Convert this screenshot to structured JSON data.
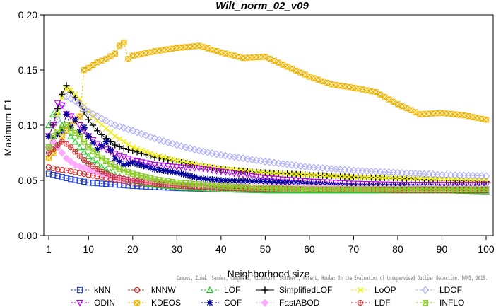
{
  "chart_data": {
    "type": "line",
    "title": "Wilt_norm_02_v09",
    "xlabel": "Neighborhood size",
    "ylabel": "Maximum F1",
    "xlim": [
      1,
      100
    ],
    "ylim": [
      0.0,
      0.2
    ],
    "xticks": [
      1,
      10,
      20,
      30,
      40,
      50,
      60,
      70,
      80,
      90,
      100
    ],
    "yticks": [
      0.0,
      0.05,
      0.1,
      0.15,
      0.2
    ],
    "ytick_labels": [
      "0.00",
      "0.05",
      "0.10",
      "0.15",
      "0.20"
    ],
    "grid": false,
    "legend_position": "bottom",
    "credit": "Campos, Zimek, Sander, Campello, Micenková, Schubert, Assent, Houle: On the Evaluation of Unsupervised Outlier Detection. DAMI, 2015.",
    "series": [
      {
        "name": "kNN",
        "color": "#1f3fdc",
        "marker": "square",
        "linestyle": "dashed",
        "points": [
          [
            1,
            0.056
          ],
          [
            3,
            0.054
          ],
          [
            5,
            0.052
          ],
          [
            10,
            0.048
          ],
          [
            20,
            0.045
          ],
          [
            30,
            0.043
          ],
          [
            40,
            0.042
          ],
          [
            50,
            0.041
          ],
          [
            60,
            0.041
          ],
          [
            70,
            0.041
          ],
          [
            80,
            0.041
          ],
          [
            90,
            0.041
          ],
          [
            100,
            0.041
          ]
        ]
      },
      {
        "name": "kNNW",
        "color": "#e02020",
        "marker": "circle",
        "linestyle": "dashed",
        "points": [
          [
            1,
            0.062
          ],
          [
            3,
            0.06
          ],
          [
            5,
            0.059
          ],
          [
            10,
            0.055
          ],
          [
            20,
            0.048
          ],
          [
            30,
            0.045
          ],
          [
            40,
            0.043
          ],
          [
            50,
            0.042
          ],
          [
            60,
            0.042
          ],
          [
            70,
            0.042
          ],
          [
            80,
            0.042
          ],
          [
            90,
            0.041
          ],
          [
            100,
            0.041
          ]
        ]
      },
      {
        "name": "LOF",
        "color": "#22cc22",
        "marker": "triangle-up",
        "linestyle": "dashed",
        "points": [
          [
            1,
            0.1
          ],
          [
            2,
            0.11
          ],
          [
            3,
            0.112
          ],
          [
            4,
            0.1
          ],
          [
            5,
            0.095
          ],
          [
            6,
            0.09
          ],
          [
            8,
            0.08
          ],
          [
            10,
            0.072
          ],
          [
            13,
            0.062
          ],
          [
            16,
            0.055
          ],
          [
            20,
            0.05
          ],
          [
            25,
            0.046
          ],
          [
            30,
            0.044
          ],
          [
            40,
            0.042
          ],
          [
            50,
            0.041
          ],
          [
            60,
            0.041
          ],
          [
            70,
            0.041
          ],
          [
            80,
            0.041
          ],
          [
            90,
            0.041
          ],
          [
            100,
            0.04
          ]
        ]
      },
      {
        "name": "SimplifiedLOF",
        "color": "#000000",
        "marker": "plus",
        "linestyle": "solid",
        "points": [
          [
            1,
            0.09
          ],
          [
            2,
            0.1
          ],
          [
            3,
            0.115
          ],
          [
            4,
            0.128
          ],
          [
            5,
            0.136
          ],
          [
            6,
            0.13
          ],
          [
            7,
            0.125
          ],
          [
            8,
            0.12
          ],
          [
            9,
            0.112
          ],
          [
            10,
            0.105
          ],
          [
            12,
            0.095
          ],
          [
            14,
            0.088
          ],
          [
            16,
            0.082
          ],
          [
            18,
            0.079
          ],
          [
            20,
            0.077
          ],
          [
            25,
            0.071
          ],
          [
            30,
            0.067
          ],
          [
            35,
            0.063
          ],
          [
            40,
            0.06
          ],
          [
            50,
            0.057
          ],
          [
            60,
            0.055
          ],
          [
            70,
            0.053
          ],
          [
            80,
            0.052
          ],
          [
            90,
            0.05
          ],
          [
            100,
            0.049
          ]
        ]
      },
      {
        "name": "LoOP",
        "color": "#eeee00",
        "marker": "x",
        "linestyle": "dashed",
        "points": [
          [
            1,
            0.08
          ],
          [
            2,
            0.09
          ],
          [
            3,
            0.11
          ],
          [
            4,
            0.125
          ],
          [
            5,
            0.133
          ],
          [
            6,
            0.132
          ],
          [
            7,
            0.128
          ],
          [
            8,
            0.124
          ],
          [
            10,
            0.112
          ],
          [
            12,
            0.104
          ],
          [
            14,
            0.097
          ],
          [
            16,
            0.09
          ],
          [
            18,
            0.085
          ],
          [
            20,
            0.08
          ],
          [
            25,
            0.073
          ],
          [
            30,
            0.068
          ],
          [
            35,
            0.064
          ],
          [
            40,
            0.061
          ],
          [
            50,
            0.057
          ],
          [
            60,
            0.055
          ],
          [
            70,
            0.053
          ],
          [
            80,
            0.052
          ],
          [
            90,
            0.051
          ],
          [
            100,
            0.05
          ]
        ]
      },
      {
        "name": "LDOF",
        "color": "#aaaaff",
        "marker": "diamond",
        "linestyle": "dashed",
        "points": [
          [
            1,
            0.08
          ],
          [
            2,
            0.09
          ],
          [
            3,
            0.105
          ],
          [
            4,
            0.118
          ],
          [
            5,
            0.126
          ],
          [
            6,
            0.124
          ],
          [
            7,
            0.122
          ],
          [
            8,
            0.119
          ],
          [
            10,
            0.112
          ],
          [
            13,
            0.106
          ],
          [
            16,
            0.1
          ],
          [
            20,
            0.095
          ],
          [
            25,
            0.088
          ],
          [
            30,
            0.082
          ],
          [
            35,
            0.077
          ],
          [
            40,
            0.073
          ],
          [
            50,
            0.067
          ],
          [
            60,
            0.062
          ],
          [
            70,
            0.059
          ],
          [
            80,
            0.057
          ],
          [
            90,
            0.055
          ],
          [
            100,
            0.054
          ]
        ]
      },
      {
        "name": "ODIN",
        "color": "#b000e0",
        "marker": "triangle-down",
        "linestyle": "dashed",
        "points": [
          [
            1,
            0.09
          ],
          [
            2,
            0.1
          ],
          [
            3,
            0.12
          ],
          [
            4,
            0.118
          ],
          [
            5,
            0.11
          ],
          [
            6,
            0.108
          ],
          [
            7,
            0.105
          ],
          [
            8,
            0.1
          ],
          [
            10,
            0.09
          ],
          [
            12,
            0.083
          ],
          [
            14,
            0.078
          ],
          [
            16,
            0.074
          ],
          [
            20,
            0.068
          ],
          [
            25,
            0.064
          ],
          [
            30,
            0.062
          ],
          [
            35,
            0.061
          ],
          [
            40,
            0.058
          ],
          [
            50,
            0.052
          ],
          [
            60,
            0.049
          ],
          [
            70,
            0.047
          ],
          [
            80,
            0.046
          ],
          [
            90,
            0.046
          ],
          [
            100,
            0.046
          ]
        ]
      },
      {
        "name": "KDEOS",
        "color": "#f0b400",
        "marker": "square-x",
        "linestyle": "dashed",
        "points": [
          [
            1,
            0.07
          ],
          [
            2,
            0.075
          ],
          [
            3,
            0.08
          ],
          [
            4,
            0.09
          ],
          [
            5,
            0.095
          ],
          [
            6,
            0.1
          ],
          [
            7,
            0.104
          ],
          [
            8,
            0.108
          ],
          [
            9,
            0.15
          ],
          [
            10,
            0.152
          ],
          [
            12,
            0.157
          ],
          [
            14,
            0.16
          ],
          [
            16,
            0.165
          ],
          [
            17,
            0.172
          ],
          [
            18,
            0.175
          ],
          [
            19,
            0.16
          ],
          [
            20,
            0.163
          ],
          [
            25,
            0.167
          ],
          [
            30,
            0.17
          ],
          [
            35,
            0.172
          ],
          [
            40,
            0.166
          ],
          [
            45,
            0.161
          ],
          [
            50,
            0.162
          ],
          [
            55,
            0.153
          ],
          [
            60,
            0.144
          ],
          [
            65,
            0.137
          ],
          [
            70,
            0.134
          ],
          [
            75,
            0.13
          ],
          [
            80,
            0.119
          ],
          [
            85,
            0.11
          ],
          [
            90,
            0.111
          ],
          [
            95,
            0.109
          ],
          [
            100,
            0.105
          ]
        ]
      },
      {
        "name": "COF",
        "color": "#000099",
        "marker": "star",
        "linestyle": "dashed",
        "points": [
          [
            1,
            0.09
          ],
          [
            2,
            0.088
          ],
          [
            3,
            0.092
          ],
          [
            4,
            0.095
          ],
          [
            5,
            0.11
          ],
          [
            6,
            0.098
          ],
          [
            7,
            0.105
          ],
          [
            8,
            0.094
          ],
          [
            9,
            0.098
          ],
          [
            10,
            0.09
          ],
          [
            12,
            0.078
          ],
          [
            14,
            0.085
          ],
          [
            16,
            0.07
          ],
          [
            18,
            0.064
          ],
          [
            20,
            0.066
          ],
          [
            25,
            0.06
          ],
          [
            30,
            0.057
          ],
          [
            35,
            0.052
          ],
          [
            40,
            0.05
          ],
          [
            50,
            0.049
          ],
          [
            60,
            0.047
          ],
          [
            70,
            0.045
          ],
          [
            80,
            0.045
          ],
          [
            90,
            0.044
          ],
          [
            100,
            0.044
          ]
        ]
      },
      {
        "name": "FastABOD",
        "color": "#ffaaff",
        "marker": "diamond-filled",
        "linestyle": "dashed",
        "points": [
          [
            1,
            0.08
          ],
          [
            2,
            0.085
          ],
          [
            3,
            0.08
          ],
          [
            4,
            0.075
          ],
          [
            5,
            0.07
          ],
          [
            7,
            0.064
          ],
          [
            10,
            0.06
          ],
          [
            13,
            0.056
          ],
          [
            16,
            0.053
          ],
          [
            20,
            0.05
          ],
          [
            25,
            0.048
          ],
          [
            30,
            0.046
          ],
          [
            40,
            0.045
          ],
          [
            50,
            0.044
          ],
          [
            60,
            0.044
          ],
          [
            70,
            0.043
          ],
          [
            80,
            0.043
          ],
          [
            90,
            0.043
          ],
          [
            100,
            0.043
          ]
        ]
      },
      {
        "name": "LDF",
        "color": "#cc3333",
        "marker": "circle-plus",
        "linestyle": "dashed",
        "points": [
          [
            1,
            0.075
          ],
          [
            2,
            0.078
          ],
          [
            3,
            0.082
          ],
          [
            4,
            0.085
          ],
          [
            5,
            0.083
          ],
          [
            6,
            0.08
          ],
          [
            8,
            0.072
          ],
          [
            10,
            0.065
          ],
          [
            13,
            0.058
          ],
          [
            16,
            0.053
          ],
          [
            20,
            0.05
          ],
          [
            25,
            0.047
          ],
          [
            30,
            0.045
          ],
          [
            40,
            0.043
          ],
          [
            50,
            0.042
          ],
          [
            60,
            0.042
          ],
          [
            70,
            0.042
          ],
          [
            80,
            0.041
          ],
          [
            90,
            0.041
          ],
          [
            100,
            0.041
          ]
        ]
      },
      {
        "name": "INFLO",
        "color": "#88cc22",
        "marker": "star-square",
        "linestyle": "dashed",
        "points": [
          [
            1,
            0.08
          ],
          [
            2,
            0.09
          ],
          [
            3,
            0.094
          ],
          [
            4,
            0.097
          ],
          [
            5,
            0.1
          ],
          [
            6,
            0.096
          ],
          [
            8,
            0.09
          ],
          [
            10,
            0.08
          ],
          [
            13,
            0.07
          ],
          [
            16,
            0.062
          ],
          [
            20,
            0.056
          ],
          [
            25,
            0.051
          ],
          [
            30,
            0.048
          ],
          [
            40,
            0.045
          ],
          [
            50,
            0.043
          ],
          [
            60,
            0.042
          ],
          [
            70,
            0.042
          ],
          [
            80,
            0.042
          ],
          [
            90,
            0.042
          ],
          [
            100,
            0.042
          ]
        ]
      }
    ]
  }
}
